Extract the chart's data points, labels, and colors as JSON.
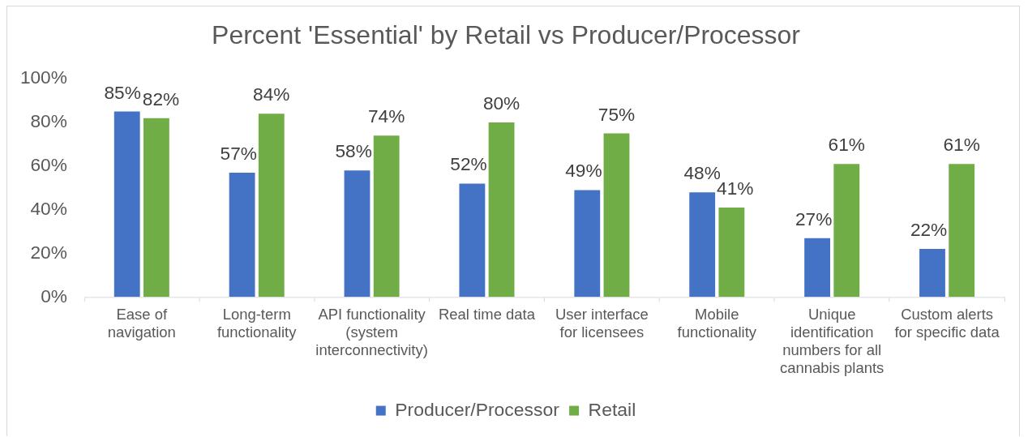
{
  "chart_data": {
    "type": "bar",
    "title": "Percent 'Essential' by Retail vs Producer/Processor",
    "categories": [
      "Ease of navigation",
      "Long-term functionality",
      "API functionality (system interconnectivity)",
      "Real time data",
      "User interface for licensees",
      "Mobile functionality",
      "Unique identification numbers for all cannabis plants",
      "Custom alerts for specific data"
    ],
    "series": [
      {
        "name": "Producer/Processor",
        "color": "#4472c4",
        "values": [
          85,
          57,
          58,
          52,
          49,
          48,
          27,
          22
        ],
        "value_labels": [
          "85%",
          "57%",
          "58%",
          "52%",
          "49%",
          "48%",
          "27%",
          "22%"
        ]
      },
      {
        "name": "Retail",
        "color": "#70ad47",
        "values": [
          82,
          84,
          74,
          80,
          75,
          41,
          61,
          61
        ],
        "value_labels": [
          "82%",
          "84%",
          "74%",
          "80%",
          "75%",
          "41%",
          "61%",
          "61%"
        ]
      }
    ],
    "ylim": [
      0,
      100
    ],
    "yticks": [
      {
        "value": 0,
        "label": "0%"
      },
      {
        "value": 20,
        "label": "20%"
      },
      {
        "value": 40,
        "label": "40%"
      },
      {
        "value": 60,
        "label": "60%"
      },
      {
        "value": 80,
        "label": "80%"
      },
      {
        "value": 100,
        "label": "100%"
      }
    ],
    "legend": "bottom"
  }
}
